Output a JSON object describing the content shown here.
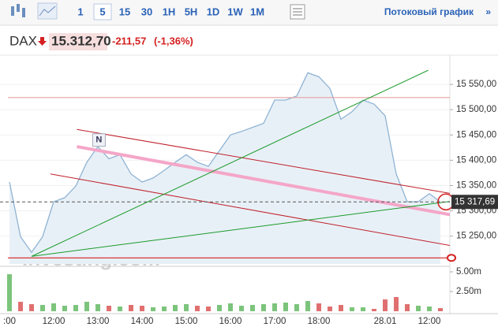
{
  "toolbar": {
    "intervals": [
      "1",
      "5",
      "15",
      "30",
      "1H",
      "5H",
      "1D",
      "1W",
      "1M"
    ],
    "selected_interval": 1,
    "streaming_link": "Потоковый график",
    "streaming_arrow": "»"
  },
  "quote": {
    "symbol": "DAX",
    "price": "15.312,70",
    "change": "-211,57",
    "change_percent": "(-1,36%)"
  },
  "chart_data": [
    {
      "type": "line",
      "color": "#8fb3d3",
      "fill": "#e8f0f7",
      "x": [
        ":00",
        null,
        null,
        null,
        "12:00",
        null,
        null,
        null,
        "13:00",
        null,
        null,
        null,
        "14:00",
        null,
        null,
        null,
        "15:00",
        null,
        null,
        null,
        "16:00",
        null,
        null,
        null,
        "17:00",
        null,
        null,
        null,
        "18:00",
        null,
        null,
        null,
        null,
        null,
        "28.01",
        null,
        null,
        null,
        "12:00",
        null
      ],
      "values": [
        15357,
        15249,
        15218,
        15249,
        15318,
        15326,
        15349,
        15396,
        15427,
        15403,
        15411,
        15373,
        15357,
        15365,
        15380,
        15396,
        15411,
        15396,
        15388,
        15419,
        15450,
        15457,
        15465,
        15473,
        15519,
        15519,
        15527,
        15573,
        15565,
        15542,
        15481,
        15496,
        15519,
        15511,
        15488,
        15373,
        15318,
        15318,
        15334,
        15317.69
      ],
      "ylim": [
        15195,
        15600
      ],
      "yticks": [
        {
          "value": 15250,
          "label": "15 250,00"
        },
        {
          "value": 15300,
          "label": "15 300,00"
        },
        {
          "value": 15350,
          "label": "15 350,00"
        },
        {
          "value": 15400,
          "label": "15 400,00"
        },
        {
          "value": 15450,
          "label": "15 450,00"
        },
        {
          "value": 15500,
          "label": "15 500,00"
        },
        {
          "value": 15550,
          "label": "15 550,00"
        }
      ],
      "last_price": {
        "value": 15317.69,
        "label": "15 317,69"
      },
      "hlines": [
        {
          "value": 15524,
          "color": "#e8a0a0"
        },
        {
          "value": 15207,
          "color": "#d42020"
        }
      ],
      "trendlines": [
        {
          "color": "#c0202a",
          "x": [
            6.1,
            40
          ],
          "y": [
            15461,
            15334
          ]
        },
        {
          "color": "#c0202a",
          "x": [
            3.7,
            40
          ],
          "y": [
            15373,
            15231
          ]
        },
        {
          "color": "#f4a6c8",
          "x": [
            6.1,
            40
          ],
          "y": [
            15427,
            15292
          ]
        },
        {
          "color": "#1a9a2a",
          "x": [
            2,
            37.9
          ],
          "y": [
            15210,
            15578
          ]
        },
        {
          "color": "#1a9a2a",
          "x": [
            2,
            40
          ],
          "y": [
            15210,
            15319
          ]
        }
      ],
      "annotations": [
        {
          "text": "N",
          "x": 8.1,
          "y": 15440
        }
      ],
      "watermark": "Investing.com"
    },
    {
      "type": "bar",
      "up_color": "#7cc47c",
      "down_color": "#e07070",
      "values": [
        4700000,
        1200000,
        900000,
        800000,
        1000000,
        700000,
        800000,
        1200000,
        900000,
        700000,
        600000,
        800000,
        700000,
        500000,
        600000,
        800000,
        900000,
        700000,
        600000,
        800000,
        1000000,
        700000,
        800000,
        900000,
        1000000,
        1100000,
        900000,
        1300000,
        1000000,
        600000,
        800000,
        500000,
        500000,
        300000,
        1500000,
        1800000,
        900000,
        700000,
        600000,
        400000
      ],
      "ylim": [
        0,
        5500000
      ],
      "yticks": [
        {
          "value": 2500000,
          "label": "2.50m"
        },
        {
          "value": 5000000,
          "label": "5.00m"
        }
      ]
    }
  ]
}
